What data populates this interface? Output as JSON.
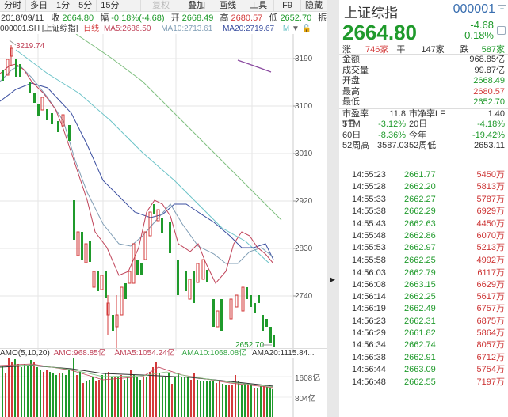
{
  "toolbar": {
    "buttons": [
      "分时",
      "多日",
      "1分",
      "5分",
      "15分",
      "复权",
      "叠加",
      "画线",
      "工具",
      "F9",
      "隐藏"
    ]
  },
  "infobar": {
    "date": "2018/09/11",
    "close_label": "收",
    "close": "2664.80",
    "amp_label": "幅",
    "amp": "-0.18%(-4.68)",
    "open_label": "开",
    "open": "2668.49",
    "high_label": "高",
    "high": "2680.57",
    "low_label": "低",
    "low": "2652.70",
    "more": "振..."
  },
  "mabar": {
    "code": "000001.SH [上证综指]",
    "period": "日线",
    "ma5": "MA5:2686.50",
    "ma10": "MA10:2713.61",
    "ma20": "MA20:2719.67",
    "m": "M"
  },
  "chart": {
    "y_ticks": [
      "3190",
      "3100",
      "3010",
      "2920",
      "2830",
      "2740"
    ],
    "high_marker": "3219.74",
    "low_marker": "2652.70"
  },
  "volume": {
    "legend": "AMO(5,10,20)",
    "amo": "AMO:968.85亿",
    "ama5": "AMA5:1054.24亿",
    "ama10": "AMA10:1068.08亿",
    "ama20": "AMA20:1115.84...",
    "y_ticks": [
      "1608亿",
      "804亿"
    ]
  },
  "quote": {
    "name": "上证综指",
    "code": "000001",
    "price": "2664.80",
    "change": "-4.68",
    "change_pct": "-0.18%",
    "breadth": {
      "up_label": "涨",
      "up": "746家",
      "flat_label": "平",
      "flat": "147家",
      "down_label": "跌",
      "down": "587家"
    },
    "stats": [
      {
        "label": "金额",
        "value": "968.85亿",
        "color": "k"
      },
      {
        "label": "成交量",
        "value": "99.87亿",
        "color": "k"
      },
      {
        "label": "开盘",
        "value": "2668.49",
        "color": "g"
      },
      {
        "label": "最高",
        "value": "2680.57",
        "color": "r"
      },
      {
        "label": "最低",
        "value": "2652.70",
        "color": "g"
      }
    ],
    "grid": [
      {
        "l1": "市盈率TTM",
        "v1": "11.8",
        "l2": "市净率LF",
        "v2": "1.40",
        "c": "k"
      },
      {
        "l1": "5日",
        "v1": "-3.12%",
        "l2": "20日",
        "v2": "-4.18%",
        "c": "g"
      },
      {
        "l1": "60日",
        "v1": "-8.36%",
        "l2": "今年",
        "v2": "-19.42%",
        "c": "g"
      },
      {
        "l1": "52周高",
        "v1": "3587.03",
        "l2": "52周低",
        "v2": "2653.11",
        "c": "k"
      }
    ]
  },
  "ticks": [
    {
      "time": "14:55:23",
      "price": "2661.77",
      "vol": "5450万"
    },
    {
      "time": "14:55:28",
      "price": "2662.20",
      "vol": "5813万"
    },
    {
      "time": "14:55:33",
      "price": "2662.27",
      "vol": "5787万"
    },
    {
      "time": "14:55:38",
      "price": "2662.29",
      "vol": "6929万"
    },
    {
      "time": "14:55:43",
      "price": "2662.63",
      "vol": "4450万"
    },
    {
      "time": "14:55:48",
      "price": "2662.86",
      "vol": "6070万"
    },
    {
      "time": "14:55:53",
      "price": "2662.97",
      "vol": "5213万"
    },
    {
      "time": "14:55:58",
      "price": "2662.25",
      "vol": "4992万"
    },
    {
      "time": "14:56:03",
      "price": "2662.79",
      "vol": "6117万"
    },
    {
      "time": "14:56:08",
      "price": "2663.15",
      "vol": "6629万"
    },
    {
      "time": "14:56:14",
      "price": "2662.25",
      "vol": "5617万"
    },
    {
      "time": "14:56:19",
      "price": "2662.49",
      "vol": "6757万"
    },
    {
      "time": "14:56:23",
      "price": "2662.31",
      "vol": "6875万"
    },
    {
      "time": "14:56:29",
      "price": "2661.82",
      "vol": "5864万"
    },
    {
      "time": "14:56:34",
      "price": "2662.74",
      "vol": "8057万"
    },
    {
      "time": "14:56:38",
      "price": "2662.91",
      "vol": "6712万"
    },
    {
      "time": "14:56:44",
      "price": "2663.09",
      "vol": "5754万"
    },
    {
      "time": "14:56:48",
      "price": "2662.55",
      "vol": "7197万"
    }
  ],
  "colors": {
    "up": "#d33a3a",
    "down": "#1f9a2b",
    "ma5": "#c0445a",
    "ma10": "#7f9db5",
    "ma20": "#3b4fa0",
    "ma60": "#6cc3c8",
    "ma120": "#7fbf7f",
    "ma250": "#8a4aa0"
  }
}
